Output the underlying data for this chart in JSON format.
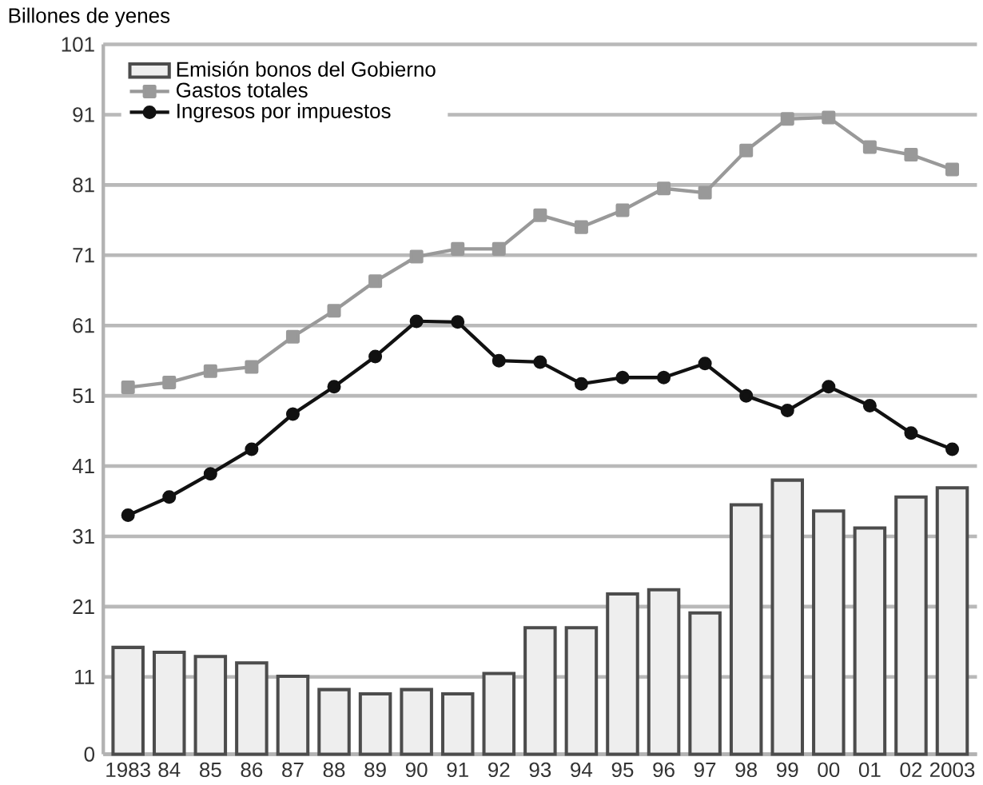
{
  "chart_data": {
    "type": "bar",
    "ylabel": "Billones de yenes",
    "categories": [
      "1983",
      "84",
      "85",
      "86",
      "87",
      "88",
      "89",
      "90",
      "91",
      "92",
      "93",
      "94",
      "95",
      "96",
      "97",
      "98",
      "99",
      "00",
      "01",
      "02",
      "2003"
    ],
    "series": [
      {
        "name": "Emisión bonos del Gobierno",
        "color": "#eeeeee",
        "values": [
          15.2,
          14.5,
          13.9,
          13.0,
          11.1,
          9.2,
          8.6,
          9.2,
          8.6,
          11.5,
          18.0,
          18.0,
          22.8,
          23.4,
          20.1,
          35.5,
          39.0,
          34.6,
          32.2,
          36.6,
          37.9
        ]
      },
      {
        "name": "Gastos totales",
        "type": "line",
        "marker": "square",
        "color": "#999999",
        "values": [
          52.2,
          52.9,
          54.5,
          55.1,
          59.4,
          63.1,
          67.3,
          70.8,
          71.9,
          71.9,
          76.7,
          75.0,
          77.4,
          80.5,
          79.9,
          85.9,
          90.4,
          90.6,
          86.4,
          85.3,
          83.2
        ]
      },
      {
        "name": "Ingresos por impuestos",
        "type": "line",
        "marker": "circle",
        "color": "#111111",
        "values": [
          34.0,
          36.6,
          39.9,
          43.4,
          48.4,
          52.3,
          56.6,
          61.6,
          61.5,
          56.0,
          55.8,
          52.7,
          53.6,
          53.6,
          55.6,
          51.0,
          48.9,
          52.3,
          49.6,
          45.7,
          43.4
        ]
      }
    ],
    "ylim": [
      0,
      101
    ],
    "yticks": [
      0,
      11,
      21,
      31,
      41,
      51,
      61,
      71,
      81,
      91,
      101
    ],
    "grid": "y",
    "legend": "top left"
  }
}
